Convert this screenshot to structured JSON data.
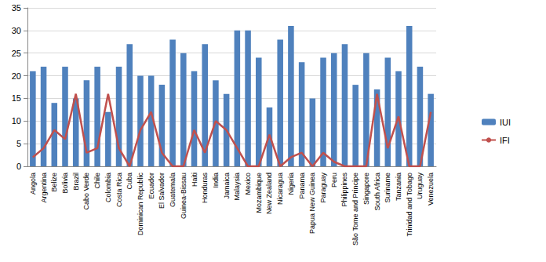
{
  "chart_data": {
    "type": "bar",
    "categories": [
      "Angola",
      "Argentina",
      "Belize",
      "Bolivia",
      "Brazil",
      "Cabo Verde",
      "Chile",
      "Colombia",
      "Costa Rica",
      "Cuba",
      "Dominican Republic",
      "Ecuador",
      "El Salvador",
      "Guatemala",
      "Guinea-Bissau",
      "Haiti",
      "Honduras",
      "India",
      "Jamaica",
      "Malaysia",
      "Mexico",
      "Mozambique",
      "New Zealand",
      "Nicaragua",
      "Nigeria",
      "Panama",
      "Papua New Guinea",
      "Paraguay",
      "Peru",
      "Philippines",
      "São Tome and Principe",
      "Singapore",
      "South Africa",
      "Suriname",
      "Tanzania",
      "Trinidad and Tobago",
      "Uruguay",
      "Venezuela"
    ],
    "series": [
      {
        "name": "IUI",
        "type": "bar",
        "color": "#4f81bd",
        "values": [
          21,
          22,
          14,
          22,
          15,
          19,
          22,
          12,
          22,
          27,
          20,
          20,
          18,
          28,
          25,
          21,
          27,
          19,
          16,
          30,
          30,
          24,
          13,
          28,
          31,
          23,
          15,
          24,
          25,
          27,
          18,
          25,
          17,
          24,
          21,
          31,
          22,
          16
        ]
      },
      {
        "name": "IFI",
        "type": "line",
        "color": "#c0504d",
        "marker": "none",
        "line_style": "solid",
        "values": [
          2,
          4,
          8,
          6,
          16,
          3,
          4,
          16,
          4,
          0,
          8,
          12,
          3,
          0,
          0,
          8,
          3,
          10,
          8,
          4,
          0,
          0,
          7,
          0,
          2,
          3,
          0,
          3,
          1,
          0,
          0,
          0,
          16,
          4,
          11,
          0,
          0,
          12
        ]
      }
    ],
    "ylim": [
      0,
      35
    ],
    "yticks": [
      0,
      5,
      10,
      15,
      20,
      25,
      30,
      35
    ],
    "grid": true,
    "legend": "right"
  }
}
